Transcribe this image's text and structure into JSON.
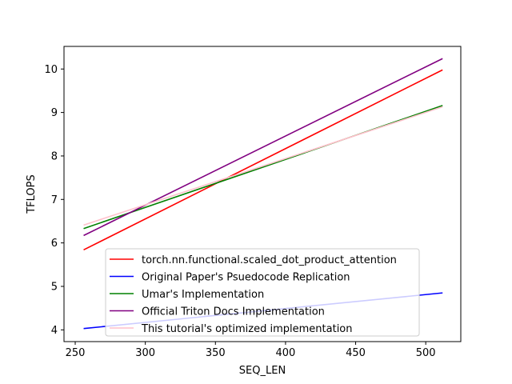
{
  "chart_data": {
    "type": "line",
    "title": "",
    "xlabel": "SEQ_LEN",
    "ylabel": "TFLOPS",
    "xlim": [
      242,
      525
    ],
    "ylim": [
      3.73,
      10.52
    ],
    "xticks": [
      250,
      300,
      350,
      400,
      450,
      500
    ],
    "yticks": [
      4,
      5,
      6,
      7,
      8,
      9,
      10
    ],
    "grid": false,
    "legend_position": "lower center",
    "series": [
      {
        "name": "torch.nn.functional.scaled_dot_product_attention",
        "color": "#ff0000",
        "x": [
          256,
          512
        ],
        "y": [
          5.84,
          9.98
        ]
      },
      {
        "name": "Original Paper's Psuedocode Replication",
        "color": "#0000ff",
        "x": [
          256,
          512
        ],
        "y": [
          4.03,
          4.85
        ]
      },
      {
        "name": "Umar's Implementation",
        "color": "#008000",
        "x": [
          256,
          512
        ],
        "y": [
          6.33,
          9.16
        ]
      },
      {
        "name": "Official Triton Docs Implementation",
        "color": "#800080",
        "x": [
          256,
          512
        ],
        "y": [
          6.17,
          10.24
        ]
      },
      {
        "name": "This tutorial's optimized implementation",
        "color": "#ffc0cb",
        "x": [
          256,
          512
        ],
        "y": [
          6.41,
          9.13
        ]
      }
    ]
  }
}
